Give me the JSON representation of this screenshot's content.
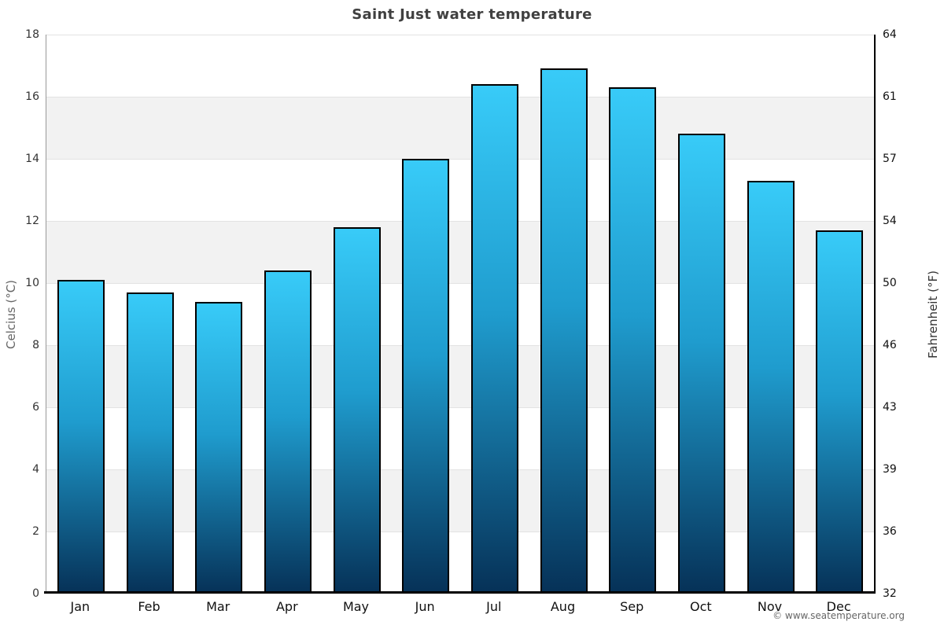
{
  "title": "Saint Just water temperature",
  "footer": "© www.seatemperature.org",
  "chart_data": {
    "type": "bar",
    "title": "Saint Just water temperature",
    "categories": [
      "Jan",
      "Feb",
      "Mar",
      "Apr",
      "May",
      "Jun",
      "Jul",
      "Aug",
      "Sep",
      "Oct",
      "Nov",
      "Dec"
    ],
    "values": [
      10.1,
      9.7,
      9.4,
      10.4,
      11.8,
      14,
      16.4,
      16.9,
      16.3,
      14.8,
      13.3,
      11.7
    ],
    "unit": "°C",
    "ylabel_left": "Celcius (°C)",
    "ylabel_right": "Fahrenheit (°F)",
    "ylim_celsius": [
      0,
      18
    ],
    "celsius_ticks": [
      0,
      2,
      4,
      6,
      8,
      10,
      12,
      14,
      16,
      18
    ],
    "fahrenheit_tick_labels": [
      "32",
      "36",
      "39",
      "43",
      "46",
      "50",
      "54",
      "57",
      "61",
      "64"
    ],
    "grid": "horizontal alternating shaded bands every 2°C",
    "legend": "none",
    "colors": {
      "bar_gradient_top": "#38cbf8",
      "bar_gradient_mid": "#1f9cce",
      "bar_gradient_bottom": "#063157",
      "bar_border": "#000000",
      "band_shade": "#f2f2f2",
      "band_plain": "#ffffff",
      "grid_line": "#e3e3e3",
      "left_spine": "#999999",
      "right_spine": "#000000",
      "bottom_axis": "#000000",
      "title_text": "#404040",
      "footer_text": "#666666"
    }
  }
}
